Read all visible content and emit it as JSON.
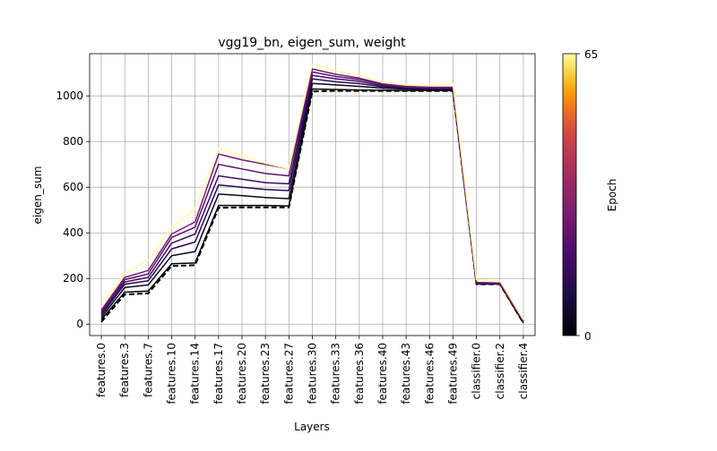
{
  "chart_data": {
    "type": "line",
    "title": "vgg19_bn, eigen_sum, weight",
    "xlabel": "Layers",
    "ylabel": "eigen_sum",
    "categories": [
      "features.0",
      "features.3",
      "features.7",
      "features.10",
      "features.14",
      "features.17",
      "features.20",
      "features.23",
      "features.27",
      "features.30",
      "features.33",
      "features.36",
      "features.40",
      "features.43",
      "features.46",
      "features.49",
      "classifier.0",
      "classifier.2",
      "classifier.4"
    ],
    "ylim": [
      -50,
      1185
    ],
    "yticks": [
      0,
      200,
      400,
      600,
      800,
      1000
    ],
    "grid": true,
    "colormap": "inferno",
    "colorbar": {
      "label": "Epoch",
      "min": 0,
      "max": 65,
      "tick_labels": [
        "0",
        "65"
      ]
    },
    "series": [
      {
        "epoch": 0,
        "style": "dashed",
        "color": "#000000",
        "values": [
          10,
          130,
          135,
          255,
          258,
          510,
          512,
          512,
          512,
          1020,
          1022,
          1022,
          1022,
          1022,
          1022,
          1022,
          175,
          175,
          5
        ]
      },
      {
        "epoch": 1,
        "style": "solid",
        "color": "#000004",
        "values": [
          20,
          140,
          145,
          265,
          268,
          520,
          520,
          520,
          518,
          1030,
          1028,
          1026,
          1025,
          1024,
          1024,
          1024,
          176,
          176,
          6
        ]
      },
      {
        "epoch": 5,
        "style": "solid",
        "color": "#0b0724",
        "values": [
          30,
          160,
          172,
          300,
          318,
          570,
          563,
          555,
          550,
          1055,
          1048,
          1042,
          1034,
          1030,
          1028,
          1028,
          177,
          176,
          8
        ]
      },
      {
        "epoch": 10,
        "style": "solid",
        "color": "#240c4f",
        "values": [
          40,
          175,
          190,
          330,
          360,
          610,
          600,
          590,
          585,
          1075,
          1062,
          1054,
          1040,
          1034,
          1031,
          1031,
          178,
          177,
          10
        ]
      },
      {
        "epoch": 15,
        "style": "solid",
        "color": "#420a68",
        "values": [
          48,
          185,
          205,
          355,
          395,
          650,
          635,
          620,
          615,
          1090,
          1075,
          1064,
          1045,
          1037,
          1034,
          1034,
          180,
          178,
          12
        ]
      },
      {
        "epoch": 20,
        "style": "solid",
        "color": "#5d126e",
        "values": [
          55,
          195,
          220,
          380,
          425,
          700,
          680,
          660,
          650,
          1105,
          1085,
          1072,
          1050,
          1040,
          1036,
          1036,
          182,
          179,
          13
        ]
      },
      {
        "epoch": 25,
        "style": "solid",
        "color": "#781c6d",
        "values": [
          62,
          205,
          235,
          395,
          448,
          745,
          720,
          700,
          680,
          1118,
          1095,
          1078,
          1053,
          1042,
          1038,
          1038,
          183,
          180,
          14
        ]
      },
      {
        "epoch": 65,
        "style": "solid",
        "color": "#fcffa4",
        "values": [
          75,
          225,
          280,
          425,
          505,
          770,
          740,
          705,
          680,
          1140,
          1110,
          1090,
          1060,
          1048,
          1045,
          1055,
          195,
          190,
          20
        ]
      }
    ]
  }
}
